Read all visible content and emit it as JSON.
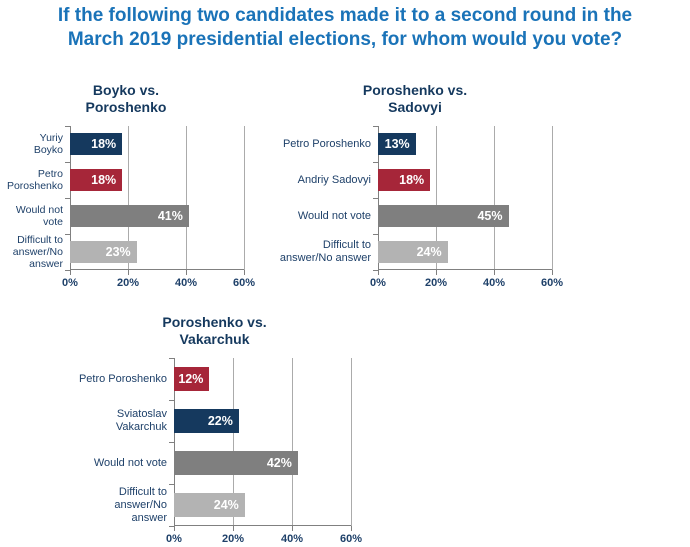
{
  "title": "If the following two candidates made it to a second round in the\nMarch 2019 presidential elections, for whom would you vote?",
  "colors": {
    "title_blue": "#1A73B8",
    "navy": "#15395E",
    "red": "#A62639",
    "dark_gray": "#7F7F7F",
    "light_gray": "#B3B3B3",
    "grid": "#ABABAB",
    "axis": "#808080",
    "text_navy": "#1E4069",
    "bar_label": "#FFFFFF",
    "background": "#FFFFFF"
  },
  "chart_data": [
    {
      "type": "bar",
      "orientation": "horizontal",
      "title": "Boyko vs.\nPoroshenko",
      "categories": [
        "Yuriy Boyko",
        "Petro Poroshenko",
        "Would not vote",
        "Difficult to answer/No answer"
      ],
      "category_lines": [
        [
          "Yuriy Boyko"
        ],
        [
          "Petro",
          "Poroshenko"
        ],
        [
          "Would not",
          "vote"
        ],
        [
          "Difficult to",
          "answer/No",
          "answer"
        ]
      ],
      "values": [
        18,
        18,
        41,
        23
      ],
      "data_labels": [
        "18%",
        "18%",
        "41%",
        "23%"
      ],
      "bar_color_keys": [
        "navy",
        "red",
        "dark_gray",
        "light_gray"
      ],
      "xlim": [
        0,
        60
      ],
      "x_ticks": [
        0,
        20,
        40,
        60
      ],
      "x_tick_labels": [
        "0%",
        "20%",
        "40%",
        "60%"
      ],
      "grid": true,
      "legend": "none"
    },
    {
      "type": "bar",
      "orientation": "horizontal",
      "title": "Poroshenko vs.\nSadovyi",
      "categories": [
        "Petro Poroshenko",
        "Andriy Sadovyi",
        "Would not vote",
        "Difficult to answer/No answer"
      ],
      "category_lines": [
        [
          "Petro Poroshenko"
        ],
        [
          "Andriy Sadovyi"
        ],
        [
          "Would not vote"
        ],
        [
          "Difficult to",
          "answer/No answer"
        ]
      ],
      "values": [
        13,
        18,
        45,
        24
      ],
      "data_labels": [
        "13%",
        "18%",
        "45%",
        "24%"
      ],
      "bar_color_keys": [
        "navy",
        "red",
        "dark_gray",
        "light_gray"
      ],
      "xlim": [
        0,
        60
      ],
      "x_ticks": [
        0,
        20,
        40,
        60
      ],
      "x_tick_labels": [
        "0%",
        "20%",
        "40%",
        "60%"
      ],
      "grid": true,
      "legend": "none"
    },
    {
      "type": "bar",
      "orientation": "horizontal",
      "title": "Poroshenko vs.\nVakarchuk",
      "categories": [
        "Petro Poroshenko",
        "Sviatoslav Vakarchuk",
        "Would not vote",
        "Difficult to answer/No answer"
      ],
      "category_lines": [
        [
          "Petro Poroshenko"
        ],
        [
          "Sviatoslav",
          "Vakarchuk"
        ],
        [
          "Would not vote"
        ],
        [
          "Difficult to",
          "answer/No answer"
        ]
      ],
      "values": [
        12,
        22,
        42,
        24
      ],
      "data_labels": [
        "12%",
        "22%",
        "42%",
        "24%"
      ],
      "bar_color_keys": [
        "red",
        "navy",
        "dark_gray",
        "light_gray"
      ],
      "xlim": [
        0,
        60
      ],
      "x_ticks": [
        0,
        20,
        40,
        60
      ],
      "x_tick_labels": [
        "0%",
        "20%",
        "40%",
        "60%"
      ],
      "grid": true,
      "legend": "none"
    }
  ]
}
